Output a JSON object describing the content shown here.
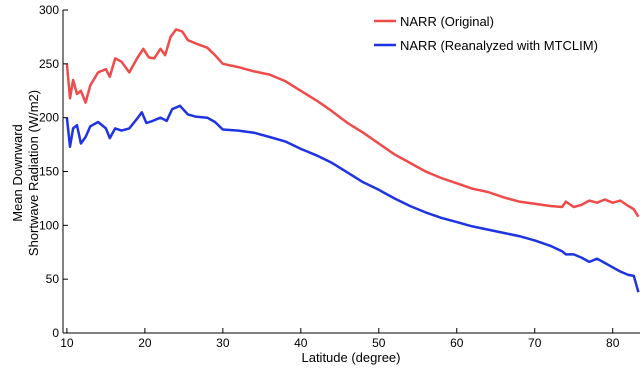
{
  "chart_data": {
    "type": "line",
    "xlabel": "Latitude (degree)",
    "ylabel_lines": [
      "Mean Downward",
      "Shortwave Radiation (W/m2)"
    ],
    "xlim": [
      9.5,
      83.5
    ],
    "ylim": [
      0,
      300
    ],
    "xticks": [
      10,
      20,
      30,
      40,
      50,
      60,
      70,
      80
    ],
    "yticks": [
      0,
      50,
      100,
      150,
      200,
      250,
      300
    ],
    "legend_position": "top-right",
    "series": [
      {
        "name": "NARR (Original)",
        "color": "#f04a4a",
        "points": [
          [
            10,
            250
          ],
          [
            10.4,
            218
          ],
          [
            10.8,
            235
          ],
          [
            11.3,
            222
          ],
          [
            11.8,
            225
          ],
          [
            12.4,
            214
          ],
          [
            13,
            230
          ],
          [
            14,
            242
          ],
          [
            15,
            245
          ],
          [
            15.5,
            238
          ],
          [
            16.2,
            255
          ],
          [
            17,
            252
          ],
          [
            18,
            242
          ],
          [
            19,
            255
          ],
          [
            19.8,
            264
          ],
          [
            20.5,
            256
          ],
          [
            21.2,
            255
          ],
          [
            22,
            264
          ],
          [
            22.6,
            258
          ],
          [
            23.3,
            275
          ],
          [
            24,
            282
          ],
          [
            24.8,
            280
          ],
          [
            25.5,
            272
          ],
          [
            26.5,
            269
          ],
          [
            28,
            265
          ],
          [
            29,
            258
          ],
          [
            30,
            250
          ],
          [
            32,
            247
          ],
          [
            34,
            243
          ],
          [
            36,
            240
          ],
          [
            38,
            234
          ],
          [
            40,
            225
          ],
          [
            42,
            216
          ],
          [
            44,
            206
          ],
          [
            46,
            195
          ],
          [
            48,
            186
          ],
          [
            50,
            176
          ],
          [
            52,
            166
          ],
          [
            54,
            158
          ],
          [
            56,
            150
          ],
          [
            58,
            144
          ],
          [
            60,
            139
          ],
          [
            62,
            134
          ],
          [
            64,
            131
          ],
          [
            66,
            126
          ],
          [
            68,
            122
          ],
          [
            70,
            120
          ],
          [
            72,
            118
          ],
          [
            73.5,
            117
          ],
          [
            74,
            122
          ],
          [
            75,
            117
          ],
          [
            76,
            119
          ],
          [
            77,
            123
          ],
          [
            78,
            121
          ],
          [
            79,
            124
          ],
          [
            80,
            121
          ],
          [
            81,
            123
          ],
          [
            82,
            118
          ],
          [
            82.7,
            115
          ],
          [
            83.3,
            108
          ]
        ]
      },
      {
        "name": "NARR (Reanalyzed with MTCLIM)",
        "color": "#1f34e0",
        "points": [
          [
            10,
            200
          ],
          [
            10.4,
            173
          ],
          [
            10.8,
            190
          ],
          [
            11.3,
            193
          ],
          [
            11.8,
            176
          ],
          [
            12.4,
            182
          ],
          [
            13,
            192
          ],
          [
            14,
            196
          ],
          [
            15,
            190
          ],
          [
            15.5,
            181
          ],
          [
            16.2,
            190
          ],
          [
            17,
            188
          ],
          [
            18,
            190
          ],
          [
            19,
            199
          ],
          [
            19.6,
            205
          ],
          [
            20.2,
            195
          ],
          [
            21,
            197
          ],
          [
            22,
            200
          ],
          [
            22.8,
            197
          ],
          [
            23.5,
            208
          ],
          [
            24.5,
            211
          ],
          [
            25.5,
            203
          ],
          [
            26.5,
            201
          ],
          [
            28,
            200
          ],
          [
            29,
            196
          ],
          [
            30,
            189
          ],
          [
            32,
            188
          ],
          [
            34,
            186
          ],
          [
            36,
            182
          ],
          [
            38,
            178
          ],
          [
            40,
            171
          ],
          [
            42,
            165
          ],
          [
            44,
            158
          ],
          [
            46,
            149
          ],
          [
            48,
            140
          ],
          [
            50,
            133
          ],
          [
            52,
            125
          ],
          [
            54,
            118
          ],
          [
            56,
            112
          ],
          [
            58,
            107
          ],
          [
            60,
            103
          ],
          [
            62,
            99
          ],
          [
            64,
            96
          ],
          [
            66,
            93
          ],
          [
            68,
            90
          ],
          [
            70,
            86
          ],
          [
            72,
            81
          ],
          [
            73.5,
            76
          ],
          [
            74,
            73
          ],
          [
            75,
            73
          ],
          [
            76,
            70
          ],
          [
            77,
            66
          ],
          [
            78,
            69
          ],
          [
            79,
            65
          ],
          [
            80,
            61
          ],
          [
            81,
            57
          ],
          [
            82,
            54
          ],
          [
            82.7,
            53
          ],
          [
            83.3,
            38
          ]
        ]
      }
    ]
  }
}
